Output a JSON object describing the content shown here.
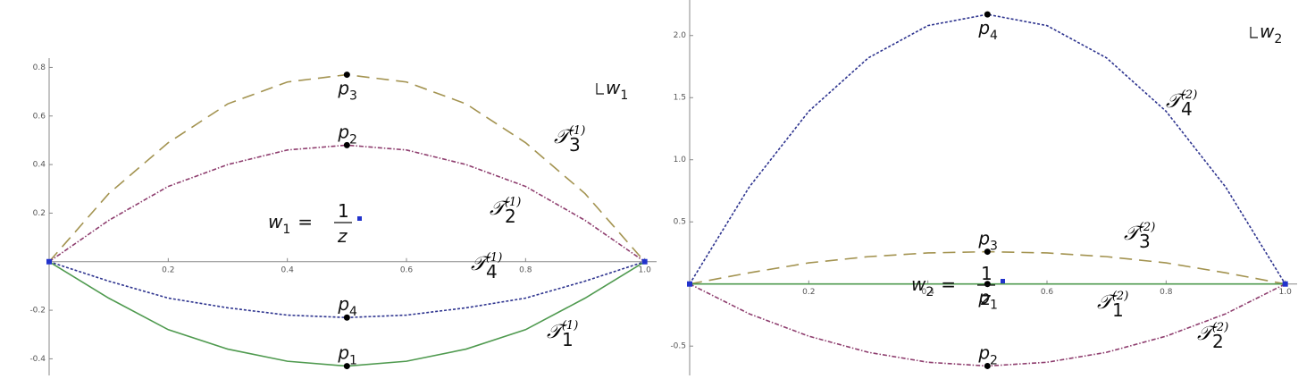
{
  "chart_data": [
    {
      "type": "line",
      "xlim": [
        0,
        1.02
      ],
      "ylim": [
        -0.45,
        0.82
      ],
      "xticks": [
        0.2,
        0.4,
        0.6,
        0.8,
        {
          "value": 1,
          "label": "1.0"
        }
      ],
      "yticks": [
        -0.4,
        -0.2,
        0.2,
        0.4,
        0.6,
        0.8
      ],
      "x": [
        0,
        0.1,
        0.2,
        0.3,
        0.4,
        0.5,
        0.6,
        0.7,
        0.8,
        0.9,
        1
      ],
      "series": [
        {
          "name": "𝒯",
          "name_sub": "3",
          "name_sup": "(1)",
          "color": "#a39350",
          "dash": "dashed",
          "values": [
            0,
            0.28,
            0.49,
            0.65,
            0.74,
            0.77,
            0.74,
            0.65,
            0.49,
            0.28,
            0
          ]
        },
        {
          "name": "𝒯",
          "name_sub": "2",
          "name_sup": "(1)",
          "color": "#8e3d6e",
          "dash": "dashdot",
          "values": [
            0,
            0.17,
            0.31,
            0.4,
            0.46,
            0.48,
            0.46,
            0.4,
            0.31,
            0.17,
            0
          ]
        },
        {
          "name": "𝒯",
          "name_sub": "4",
          "name_sup": "(1)",
          "color": "#2e348f",
          "dash": "dotted",
          "values": [
            0,
            -0.08,
            -0.15,
            -0.19,
            -0.22,
            -0.23,
            -0.22,
            -0.19,
            -0.15,
            -0.08,
            0
          ]
        },
        {
          "name": "𝒯",
          "name_sub": "1",
          "name_sup": "(1)",
          "color": "#4f9a4f",
          "dash": "solid",
          "values": [
            0,
            -0.15,
            -0.28,
            -0.36,
            -0.41,
            -0.43,
            -0.41,
            -0.36,
            -0.28,
            -0.15,
            0
          ]
        }
      ],
      "points": [
        {
          "name": "p",
          "sub": "3",
          "x": 0.5,
          "y": 0.77
        },
        {
          "name": "p",
          "sub": "2",
          "x": 0.5,
          "y": 0.48
        },
        {
          "name": "p",
          "sub": "4",
          "x": 0.5,
          "y": -0.23
        },
        {
          "name": "p",
          "sub": "1",
          "x": 0.5,
          "y": -0.43
        }
      ],
      "formula": {
        "lhs": "w",
        "lhs_sub": "1",
        "eq": "=",
        "num": "1",
        "den": "z"
      },
      "corner_label": {
        "var": "w",
        "sub": "1"
      }
    },
    {
      "type": "line",
      "xlim": [
        0,
        1.02
      ],
      "ylim": [
        -0.7,
        2.25
      ],
      "xticks": [
        0.2,
        0.4,
        0.6,
        0.8,
        {
          "value": 1,
          "label": "1.0"
        }
      ],
      "yticks": [
        -0.5,
        0.5,
        {
          "value": 1,
          "label": "1.0"
        },
        1.5,
        {
          "value": 2,
          "label": "2.0"
        }
      ],
      "x": [
        0,
        0.1,
        0.2,
        0.3,
        0.4,
        0.5,
        0.6,
        0.7,
        0.8,
        0.9,
        1
      ],
      "series": [
        {
          "name": "𝒯",
          "name_sub": "4",
          "name_sup": "(2)",
          "color": "#2e348f",
          "dash": "dotted",
          "values": [
            0,
            0.78,
            1.39,
            1.82,
            2.08,
            2.17,
            2.08,
            1.82,
            1.39,
            0.78,
            0
          ]
        },
        {
          "name": "𝒯",
          "name_sub": "3",
          "name_sup": "(2)",
          "color": "#a39350",
          "dash": "dashed",
          "values": [
            0,
            0.09,
            0.17,
            0.22,
            0.25,
            0.26,
            0.25,
            0.22,
            0.17,
            0.09,
            0
          ]
        },
        {
          "name": "𝒯",
          "name_sub": "1",
          "name_sup": "(2)",
          "color": "#4f9a4f",
          "dash": "solid",
          "values": [
            0,
            0,
            0,
            0,
            0,
            0,
            0,
            0,
            0,
            0,
            0
          ]
        },
        {
          "name": "𝒯",
          "name_sub": "2",
          "name_sup": "(2)",
          "color": "#8e3d6e",
          "dash": "dashdot",
          "values": [
            0,
            -0.24,
            -0.42,
            -0.55,
            -0.63,
            -0.66,
            -0.63,
            -0.55,
            -0.42,
            -0.24,
            0
          ]
        }
      ],
      "points": [
        {
          "name": "p",
          "sub": "4",
          "x": 0.5,
          "y": 2.17
        },
        {
          "name": "p",
          "sub": "3",
          "x": 0.5,
          "y": 0.26
        },
        {
          "name": "p",
          "sub": "1",
          "x": 0.5,
          "y": 0
        },
        {
          "name": "p",
          "sub": "2",
          "x": 0.5,
          "y": -0.66
        }
      ],
      "formula": {
        "lhs": "w",
        "lhs_sub": "2",
        "eq": "=",
        "num": "1",
        "den": "z"
      },
      "corner_label": {
        "var": "w",
        "sub": "2"
      }
    }
  ]
}
